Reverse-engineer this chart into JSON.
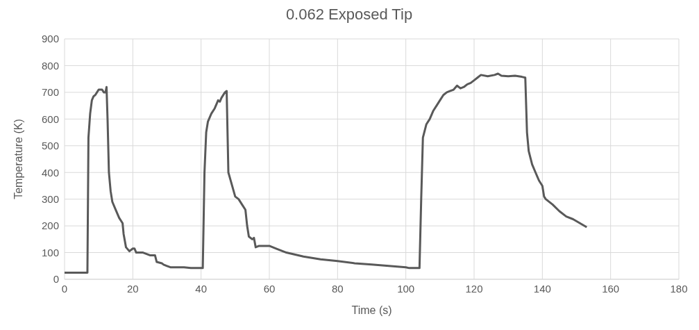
{
  "chart_data": {
    "type": "line",
    "title": "0.062 Exposed Tip",
    "xlabel": "Time (s)",
    "ylabel": "Temperature (K)",
    "x": [
      0,
      3,
      6.7,
      7,
      7.5,
      8,
      8.5,
      9,
      9.5,
      10,
      11,
      11.5,
      12,
      12.3,
      12.6,
      13,
      13.5,
      14,
      15,
      16,
      17,
      17.3,
      18,
      19,
      20,
      20.5,
      21,
      23,
      25,
      26.5,
      27,
      28.5,
      29,
      30,
      31,
      33,
      35,
      37,
      40,
      40.5,
      41,
      41.5,
      42,
      43,
      44,
      45,
      45.5,
      46,
      47,
      47.5,
      48,
      50,
      51,
      52,
      53,
      53.5,
      54,
      55,
      55.5,
      56,
      57,
      60,
      62,
      65,
      70,
      75,
      80,
      85,
      90,
      95,
      100,
      101,
      104,
      104.5,
      105,
      106,
      107,
      108,
      109,
      110,
      111,
      112,
      113,
      114,
      115,
      116,
      117,
      118,
      119,
      120,
      121,
      122,
      124,
      126,
      127,
      128,
      130,
      132,
      134,
      135,
      135.5,
      136,
      137,
      138,
      139,
      140,
      140.5,
      141,
      143,
      145,
      147,
      149,
      151,
      153
    ],
    "series": [
      {
        "color": "#595959",
        "values": [
          25,
          25,
          25,
          530,
          620,
          670,
          685,
          690,
          700,
          710,
          710,
          700,
          700,
          720,
          600,
          400,
          330,
          290,
          260,
          230,
          210,
          170,
          120,
          105,
          115,
          115,
          100,
          100,
          90,
          90,
          65,
          60,
          55,
          50,
          45,
          45,
          45,
          42,
          42,
          42,
          400,
          550,
          590,
          620,
          640,
          670,
          665,
          680,
          700,
          705,
          400,
          310,
          300,
          280,
          260,
          200,
          160,
          150,
          155,
          120,
          125,
          125,
          115,
          100,
          85,
          75,
          68,
          60,
          55,
          50,
          45,
          42,
          42,
          300,
          530,
          580,
          600,
          630,
          650,
          670,
          690,
          700,
          705,
          710,
          725,
          715,
          720,
          730,
          735,
          745,
          755,
          765,
          760,
          765,
          770,
          762,
          760,
          762,
          758,
          755,
          550,
          480,
          430,
          400,
          370,
          350,
          310,
          300,
          280,
          255,
          235,
          225,
          210,
          195
        ]
      }
    ],
    "xlim": [
      0,
      180
    ],
    "xticks": [
      0,
      20,
      40,
      60,
      80,
      100,
      120,
      140,
      160,
      180
    ],
    "ylim": [
      0,
      900
    ],
    "yticks": [
      0,
      100,
      200,
      300,
      400,
      500,
      600,
      700,
      800,
      900
    ],
    "grid": true,
    "legend": false,
    "marker": "none",
    "line_style": "solid"
  }
}
